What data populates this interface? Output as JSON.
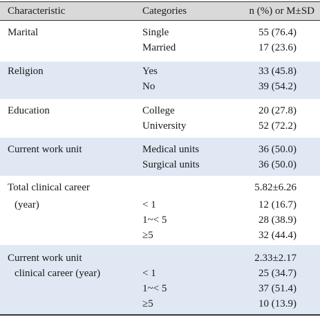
{
  "header": {
    "characteristic": "Characteristic",
    "categories": "Categories",
    "value": "n (%) or M±SD"
  },
  "groups": [
    {
      "name": "Marital",
      "rows": [
        {
          "category": "Single",
          "value": "55 (76.4)"
        },
        {
          "category": "Married",
          "value": "17 (23.6)"
        }
      ]
    },
    {
      "name": "Religion",
      "rows": [
        {
          "category": "Yes",
          "value": "33 (45.8)"
        },
        {
          "category": "No",
          "value": "39 (54.2)"
        }
      ]
    },
    {
      "name": "Education",
      "rows": [
        {
          "category": "College",
          "value": "20 (27.8)"
        },
        {
          "category": "University",
          "value": "52 (72.2)"
        }
      ]
    },
    {
      "name": "Current work unit",
      "rows": [
        {
          "category": "Medical units",
          "value": "36 (50.0)"
        },
        {
          "category": "Surgical units",
          "value": "36 (50.0)"
        }
      ]
    },
    {
      "name_line1": "Total clinical career",
      "name_line2": "(year)",
      "summary": "5.82±6.26",
      "rows": [
        {
          "category": "< 1",
          "value": "12 (16.7)"
        },
        {
          "category": "1~< 5",
          "value": "28 (38.9)"
        },
        {
          "category": "≥5",
          "value": "32 (44.4)"
        }
      ]
    },
    {
      "name_line1": "Current work unit",
      "name_line2": "clinical career (year)",
      "summary": "2.33±2.17",
      "rows": [
        {
          "category": "< 1",
          "value": "25 (34.7)"
        },
        {
          "category": "1~< 5",
          "value": "37 (51.4)"
        },
        {
          "category": "≥5",
          "value": "10 (13.9)"
        }
      ]
    }
  ]
}
